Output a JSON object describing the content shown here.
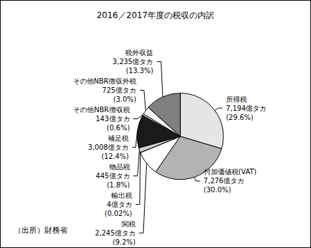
{
  "chart_data": {
    "type": "pie",
    "title": "2016／2017年度の税収の内訳",
    "categories": [
      "所得税",
      "付加価値税(VAT)",
      "関税",
      "輸出税",
      "物品税",
      "補足税",
      "その他NBR徴収税",
      "その他NBR徴収外税",
      "税外収益"
    ],
    "values": [
      29.6,
      30.0,
      9.2,
      0.02,
      1.8,
      12.4,
      0.6,
      3.0,
      13.3
    ],
    "value_labels": [
      "(29.6%)",
      "(30.0%)",
      "(9.2%)",
      "(0.02%)",
      "(1.8%)",
      "(12.4%)",
      "(0.6%)",
      "(3.0%)",
      "(13.3%)"
    ],
    "amounts": [
      7194,
      7276,
      2245,
      4,
      445,
      3008,
      143,
      725,
      3235
    ],
    "amount_labels": [
      "7,194億タカ",
      "7,276億タカ",
      "2,245億タカ",
      "4億タカ",
      "445億タカ",
      "3,008億タカ",
      "143億タカ",
      "725億タカ",
      "3,235億タカ"
    ],
    "colors": [
      "#e6e6e6",
      "#b3b3b3",
      "#ffffff",
      "#ffffff",
      "#d0d0d0",
      "#1a1a1a",
      "#ffffff",
      "#f2f2f2",
      "#808080"
    ],
    "data_labels": true,
    "annotations": [
      "（出所）財務省"
    ]
  }
}
